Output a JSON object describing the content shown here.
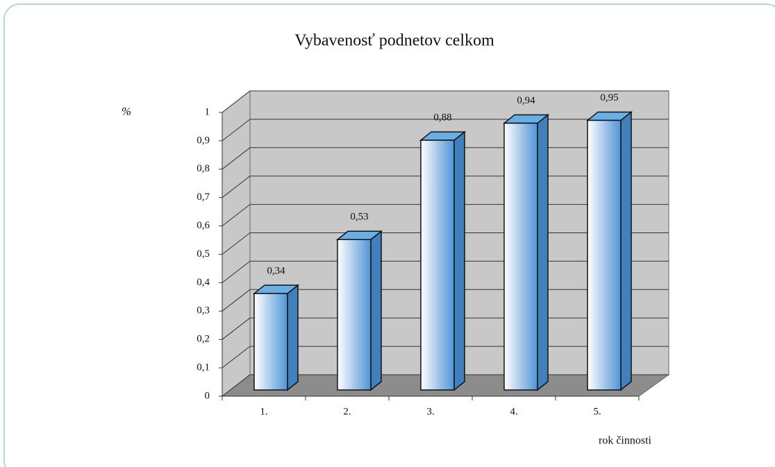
{
  "chart_data": {
    "type": "bar3d",
    "title": "Vybavenosť podnetov celkom",
    "y_label": "%",
    "x_label": "rok činnosti",
    "categories": [
      "1.",
      "2.",
      "3.",
      "4.",
      "5."
    ],
    "values": [
      0.34,
      0.53,
      0.88,
      0.94,
      0.95
    ],
    "value_labels": [
      "0,34",
      "0,53",
      "0,88",
      "0,94",
      "0,95"
    ],
    "color": "#5b9bd5",
    "ylim": [
      0,
      1
    ],
    "yticks": [
      0,
      {
        "value": 0.1,
        "label": "0,1"
      },
      {
        "value": 0.2,
        "label": "0,2"
      },
      {
        "value": 0.3,
        "label": "0,3"
      },
      {
        "value": 0.4,
        "label": "0,4"
      },
      {
        "value": 0.5,
        "label": "0,5"
      },
      {
        "value": 0.6,
        "label": "0,6"
      },
      {
        "value": 0.7,
        "label": "0,7"
      },
      {
        "value": 0.8,
        "label": "0,8"
      },
      {
        "value": 0.9,
        "label": "0,9"
      },
      1
    ],
    "grid": true
  }
}
